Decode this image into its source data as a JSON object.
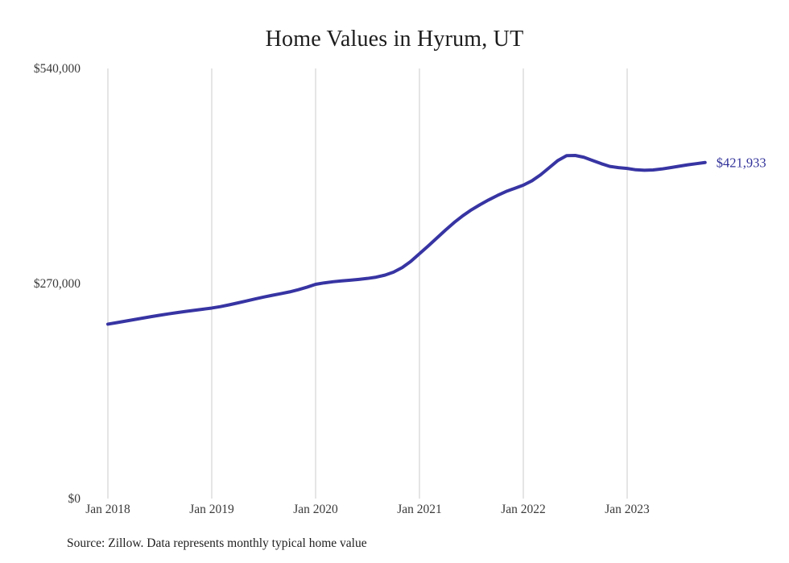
{
  "chart_data": {
    "type": "line",
    "title": "Home Values in Hyrum, UT",
    "series_name": "Typical home value",
    "xlabel": "",
    "ylabel": "",
    "ylim": [
      0,
      540000
    ],
    "grid": "vertical-only",
    "legend": "none",
    "line_color": "#3734a3",
    "end_label_color": "#31319a",
    "gridline_color": "#cbcbcb",
    "tick_label_color": "#3a3a3a",
    "end_label": "$421,933",
    "source": "Source: Zillow. Data represents monthly typical home value",
    "y_ticks": [
      {
        "value": 0,
        "label": "$0"
      },
      {
        "value": 270000,
        "label": "$270,000"
      },
      {
        "value": 540000,
        "label": "$540,000"
      }
    ],
    "x_ticks": [
      {
        "x": "2018-01",
        "label": "Jan 2018"
      },
      {
        "x": "2019-01",
        "label": "Jan 2019"
      },
      {
        "x": "2020-01",
        "label": "Jan 2020"
      },
      {
        "x": "2021-01",
        "label": "Jan 2021"
      },
      {
        "x": "2022-01",
        "label": "Jan 2022"
      },
      {
        "x": "2023-01",
        "label": "Jan 2023"
      }
    ],
    "x": [
      "2018-01",
      "2018-02",
      "2018-03",
      "2018-04",
      "2018-05",
      "2018-06",
      "2018-07",
      "2018-08",
      "2018-09",
      "2018-10",
      "2018-11",
      "2018-12",
      "2019-01",
      "2019-02",
      "2019-03",
      "2019-04",
      "2019-05",
      "2019-06",
      "2019-07",
      "2019-08",
      "2019-09",
      "2019-10",
      "2019-11",
      "2019-12",
      "2020-01",
      "2020-02",
      "2020-03",
      "2020-04",
      "2020-05",
      "2020-06",
      "2020-07",
      "2020-08",
      "2020-09",
      "2020-10",
      "2020-11",
      "2020-12",
      "2021-01",
      "2021-02",
      "2021-03",
      "2021-04",
      "2021-05",
      "2021-06",
      "2021-07",
      "2021-08",
      "2021-09",
      "2021-10",
      "2021-11",
      "2021-12",
      "2022-01",
      "2022-02",
      "2022-03",
      "2022-04",
      "2022-05",
      "2022-06",
      "2022-07",
      "2022-08",
      "2022-09",
      "2022-10",
      "2022-11",
      "2022-12",
      "2023-01",
      "2023-02",
      "2023-03",
      "2023-04",
      "2023-05",
      "2023-06",
      "2023-07",
      "2023-08",
      "2023-09",
      "2023-10"
    ],
    "values": [
      219000,
      220800,
      222700,
      224600,
      226500,
      228400,
      230200,
      231900,
      233500,
      235000,
      236400,
      237800,
      239200,
      241000,
      243200,
      245600,
      248100,
      250600,
      253000,
      255200,
      257300,
      259500,
      262200,
      265400,
      269000,
      270800,
      272200,
      273300,
      274200,
      275200,
      276400,
      278000,
      280500,
      284300,
      290000,
      297800,
      307400,
      317000,
      327000,
      337000,
      346500,
      355000,
      362500,
      369000,
      375000,
      380500,
      385500,
      389500,
      393500,
      399000,
      406500,
      415500,
      424500,
      430500,
      430800,
      428500,
      424500,
      420500,
      417000,
      415500,
      414500,
      412800,
      412200,
      412600,
      413800,
      415500,
      417300,
      419000,
      420500,
      421933
    ]
  }
}
